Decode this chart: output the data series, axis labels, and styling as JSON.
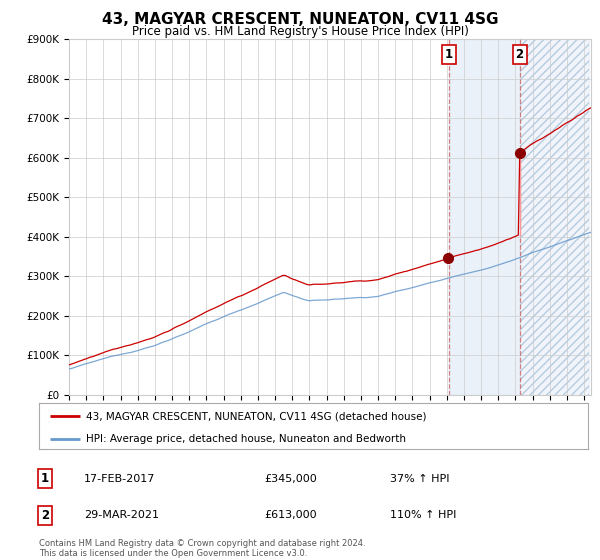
{
  "title": "43, MAGYAR CRESCENT, NUNEATON, CV11 4SG",
  "subtitle": "Price paid vs. HM Land Registry's House Price Index (HPI)",
  "ylim": [
    0,
    900000
  ],
  "yticks": [
    0,
    100000,
    200000,
    300000,
    400000,
    500000,
    600000,
    700000,
    800000,
    900000
  ],
  "ytick_labels": [
    "£0",
    "£100K",
    "£200K",
    "£300K",
    "£400K",
    "£500K",
    "£600K",
    "£700K",
    "£800K",
    "£900K"
  ],
  "year_start": 1995,
  "year_end": 2025,
  "sale1_year": 2017.12,
  "sale1_price": 345000,
  "sale2_year": 2021.24,
  "sale2_price": 613000,
  "legend_red": "43, MAGYAR CRESCENT, NUNEATON, CV11 4SG (detached house)",
  "legend_blue": "HPI: Average price, detached house, Nuneaton and Bedworth",
  "footer": "Contains HM Land Registry data © Crown copyright and database right 2024.\nThis data is licensed under the Open Government Licence v3.0.",
  "red_color": "#cc0000",
  "blue_color": "#6699cc",
  "bg_color": "#ffffff",
  "grid_color": "#cccccc",
  "highlight_color": "#dce8f5",
  "hatch_color": "#dce8f5"
}
